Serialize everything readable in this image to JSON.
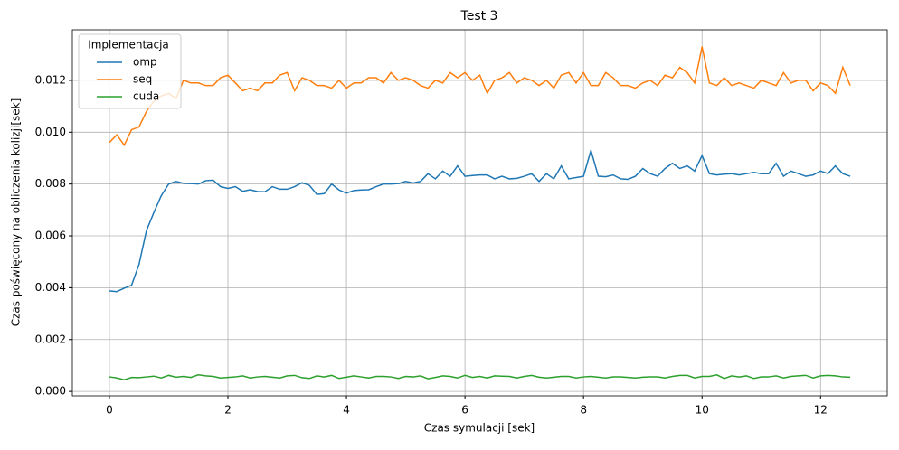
{
  "chart_data": {
    "type": "line",
    "title": "Test 3",
    "x_label": "Czas symulacji [sek]",
    "y_label": "Czas poświęcony na obliczenia kolizji[sek]",
    "legend_title": "Implementacja",
    "legend": "upper left",
    "grid": true,
    "x": [
      0,
      0.125,
      0.25,
      0.375,
      0.5,
      0.625,
      0.75,
      0.875,
      1,
      1.125,
      1.25,
      1.375,
      1.5,
      1.625,
      1.75,
      1.875,
      2,
      2.125,
      2.25,
      2.375,
      2.5,
      2.625,
      2.75,
      2.875,
      3,
      3.125,
      3.25,
      3.375,
      3.5,
      3.625,
      3.75,
      3.875,
      4,
      4.125,
      4.25,
      4.375,
      4.5,
      4.625,
      4.75,
      4.875,
      5,
      5.125,
      5.25,
      5.375,
      5.5,
      5.625,
      5.75,
      5.875,
      6,
      6.125,
      6.25,
      6.375,
      6.5,
      6.625,
      6.75,
      6.875,
      7,
      7.125,
      7.25,
      7.375,
      7.5,
      7.625,
      7.75,
      7.875,
      8,
      8.125,
      8.25,
      8.375,
      8.5,
      8.625,
      8.75,
      8.875,
      9,
      9.125,
      9.25,
      9.375,
      9.5,
      9.625,
      9.75,
      9.875,
      10,
      10.125,
      10.25,
      10.375,
      10.5,
      10.625,
      10.75,
      10.875,
      11,
      11.125,
      11.25,
      11.375,
      11.5,
      11.625,
      11.75,
      11.875,
      12,
      12.125,
      12.25,
      12.375,
      12.5
    ],
    "series": [
      {
        "name": "omp",
        "color": "#1f77b4",
        "values": [
          0.00388,
          0.00385,
          0.00398,
          0.0041,
          0.0049,
          0.0062,
          0.0069,
          0.00755,
          0.008,
          0.0081,
          0.00803,
          0.00802,
          0.008,
          0.00813,
          0.00815,
          0.0079,
          0.00783,
          0.0079,
          0.00772,
          0.00778,
          0.00771,
          0.0077,
          0.0079,
          0.0078,
          0.0078,
          0.0079,
          0.00805,
          0.00795,
          0.0076,
          0.00763,
          0.008,
          0.00777,
          0.00765,
          0.00775,
          0.00777,
          0.00778,
          0.0079,
          0.008,
          0.008,
          0.00802,
          0.0081,
          0.00804,
          0.0081,
          0.0084,
          0.0082,
          0.0085,
          0.0083,
          0.0087,
          0.0083,
          0.00833,
          0.00835,
          0.00835,
          0.0082,
          0.0083,
          0.0082,
          0.00822,
          0.0083,
          0.0084,
          0.0081,
          0.0084,
          0.0082,
          0.0087,
          0.0082,
          0.00825,
          0.0083,
          0.0093,
          0.0083,
          0.00828,
          0.00835,
          0.0082,
          0.00818,
          0.0083,
          0.0086,
          0.0084,
          0.0083,
          0.0086,
          0.0088,
          0.0086,
          0.0087,
          0.0085,
          0.0091,
          0.0084,
          0.00835,
          0.00838,
          0.0084,
          0.00835,
          0.0084,
          0.00845,
          0.0084,
          0.0084,
          0.0088,
          0.0083,
          0.0085,
          0.0084,
          0.0083,
          0.00835,
          0.0085,
          0.0084,
          0.0087,
          0.0084,
          0.0083
        ]
      },
      {
        "name": "seq",
        "color": "#ff7f0e",
        "values": [
          0.0096,
          0.0099,
          0.0095,
          0.0101,
          0.0102,
          0.0108,
          0.0112,
          0.0114,
          0.0115,
          0.0113,
          0.012,
          0.0119,
          0.0119,
          0.0118,
          0.0118,
          0.0121,
          0.0122,
          0.0119,
          0.0116,
          0.0117,
          0.0116,
          0.0119,
          0.0119,
          0.0122,
          0.0123,
          0.0116,
          0.0121,
          0.012,
          0.0118,
          0.0118,
          0.0117,
          0.012,
          0.0117,
          0.0119,
          0.0119,
          0.0121,
          0.0121,
          0.0119,
          0.0123,
          0.012,
          0.0121,
          0.012,
          0.0118,
          0.0117,
          0.012,
          0.0119,
          0.0123,
          0.0121,
          0.0123,
          0.012,
          0.0122,
          0.0115,
          0.012,
          0.0121,
          0.0123,
          0.0119,
          0.0121,
          0.012,
          0.0118,
          0.012,
          0.0117,
          0.0122,
          0.0123,
          0.0119,
          0.0123,
          0.0118,
          0.0118,
          0.0123,
          0.0121,
          0.0118,
          0.0118,
          0.0117,
          0.0119,
          0.012,
          0.0118,
          0.0122,
          0.0121,
          0.0125,
          0.0123,
          0.0119,
          0.0133,
          0.0119,
          0.0118,
          0.0121,
          0.0118,
          0.0119,
          0.0118,
          0.0117,
          0.012,
          0.0119,
          0.0118,
          0.0123,
          0.0119,
          0.012,
          0.012,
          0.0116,
          0.0119,
          0.0118,
          0.0115,
          0.0125,
          0.0118
        ]
      },
      {
        "name": "cuda",
        "color": "#2ca02c",
        "values": [
          0.00056,
          0.00052,
          0.00045,
          0.00054,
          0.00053,
          0.00056,
          0.00059,
          0.00052,
          0.00062,
          0.00055,
          0.00058,
          0.00054,
          0.00064,
          0.0006,
          0.00058,
          0.00052,
          0.00054,
          0.00056,
          0.0006,
          0.00052,
          0.00056,
          0.00058,
          0.00055,
          0.00052,
          0.0006,
          0.00062,
          0.00053,
          0.0005,
          0.0006,
          0.00056,
          0.00062,
          0.0005,
          0.00055,
          0.0006,
          0.00056,
          0.00052,
          0.00058,
          0.00058,
          0.00056,
          0.0005,
          0.00058,
          0.00056,
          0.0006,
          0.00049,
          0.00054,
          0.0006,
          0.00058,
          0.00052,
          0.00062,
          0.00054,
          0.00058,
          0.00052,
          0.0006,
          0.00059,
          0.00058,
          0.00052,
          0.00058,
          0.00062,
          0.00055,
          0.00052,
          0.00055,
          0.00058,
          0.00058,
          0.00052,
          0.00056,
          0.00058,
          0.00055,
          0.00052,
          0.00056,
          0.00056,
          0.00054,
          0.00052,
          0.00055,
          0.00056,
          0.00056,
          0.00052,
          0.00058,
          0.00062,
          0.00062,
          0.00052,
          0.00058,
          0.00058,
          0.00064,
          0.0005,
          0.0006,
          0.00056,
          0.0006,
          0.0005,
          0.00056,
          0.00056,
          0.0006,
          0.00052,
          0.00058,
          0.0006,
          0.00062,
          0.00052,
          0.0006,
          0.00062,
          0.0006,
          0.00056,
          0.00055
        ]
      }
    ],
    "xlim": [
      -0.625,
      13.125
    ],
    "xticks": [
      0,
      2,
      4,
      6,
      8,
      10,
      12
    ],
    "ylim": [
      -0.00017,
      0.01395
    ],
    "yticks": [
      {
        "value": 0,
        "label": "0.000"
      },
      {
        "value": 0.002,
        "label": "0.002"
      },
      {
        "value": 0.004,
        "label": "0.004"
      },
      {
        "value": 0.006,
        "label": "0.006"
      },
      {
        "value": 0.008,
        "label": "0.008"
      },
      {
        "value": 0.01,
        "label": "0.010"
      },
      {
        "value": 0.012,
        "label": "0.012"
      }
    ]
  }
}
